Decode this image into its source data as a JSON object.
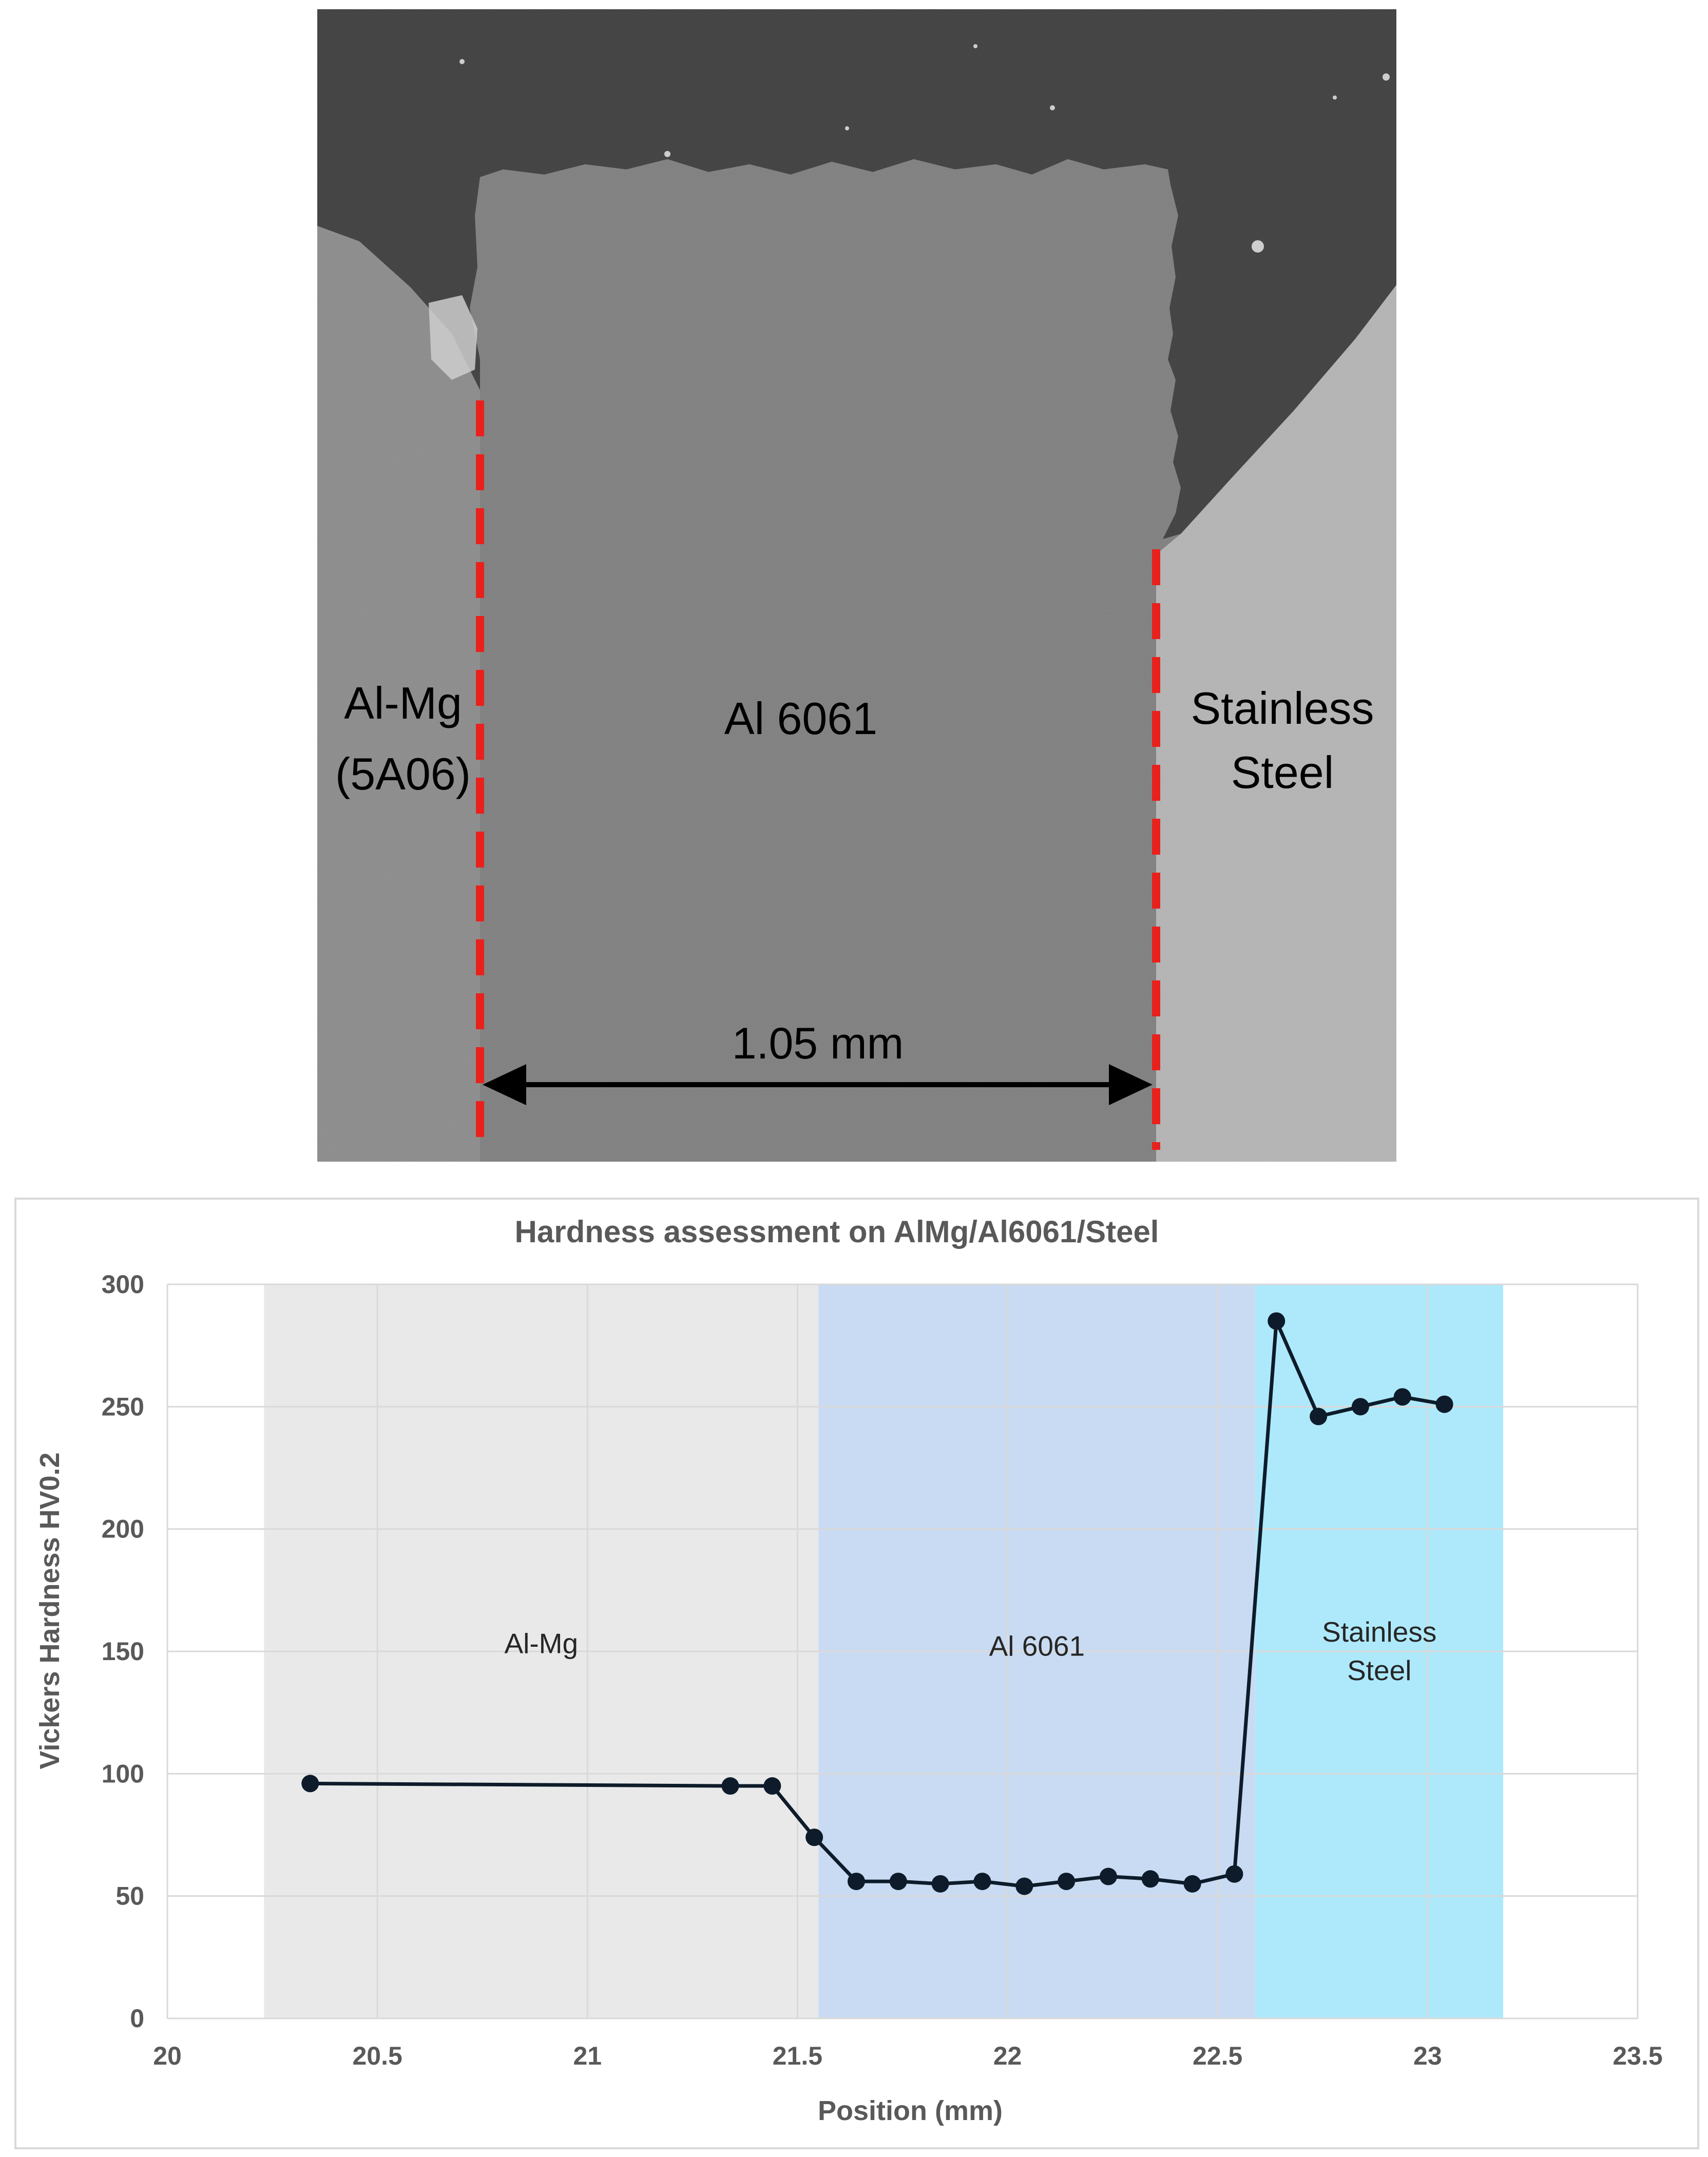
{
  "micrograph": {
    "labels": {
      "left_line1": "Al-Mg",
      "left_line2": "(5A06)",
      "center": "Al 6061",
      "right_line1": "Stainless",
      "right_line2": "Steel",
      "dimension": "1.05 mm"
    },
    "colors": {
      "mounting_resin": "#3a3a3a",
      "al_mg": "#8a8a8a",
      "al_6061": "#7d7d7d",
      "stainless_steel": "#b4b4b4",
      "interface_line": "#e8211c",
      "dimension_arrow": "#000000"
    }
  },
  "chart_data": {
    "type": "line",
    "title": "Hardness assessment on AlMg/Al6061/Steel",
    "xlabel": "Position (mm)",
    "ylabel": "Vickers Hardness HV0.2",
    "xlim": [
      20,
      23.5
    ],
    "ylim": [
      0,
      300
    ],
    "xticks": [
      20,
      20.5,
      21,
      21.5,
      22,
      22.5,
      23,
      23.5
    ],
    "yticks": [
      0,
      50,
      100,
      150,
      200,
      250,
      300
    ],
    "grid": true,
    "series": [
      {
        "x": [
          20.34,
          21.34,
          21.44,
          21.54,
          21.64,
          21.74,
          21.84,
          21.94,
          22.04,
          22.14,
          22.24,
          22.34,
          22.44,
          22.54,
          22.64,
          22.74,
          22.84,
          22.94,
          23.04
        ],
        "y": [
          96,
          95,
          95,
          74,
          56,
          56,
          55,
          56,
          54,
          56,
          58,
          57,
          55,
          59,
          285,
          246,
          250,
          254,
          251
        ],
        "color": "#0d1b2a"
      }
    ],
    "regions": [
      {
        "label_lines": [
          "Al-Mg"
        ],
        "x_start": 20.23,
        "x_end": 21.55,
        "color": "#e9e9e9"
      },
      {
        "label_lines": [
          "Al 6061"
        ],
        "x_start": 21.55,
        "x_end": 22.59,
        "color": "#c9dbf2"
      },
      {
        "label_lines": [
          "Stainless",
          "Steel"
        ],
        "x_start": 22.59,
        "x_end": 23.18,
        "color": "#aee9fb"
      }
    ]
  }
}
